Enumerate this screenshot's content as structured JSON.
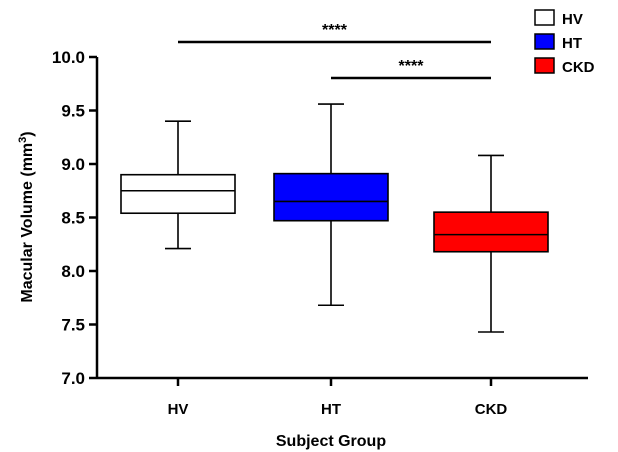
{
  "chart_data": {
    "type": "box",
    "title": "",
    "xlabel": "Subject Group",
    "ylabel_main": "Macular Volume (mm",
    "ylabel_sup": "3",
    "ylabel_tail": ")",
    "ylim": [
      7.0,
      10.0
    ],
    "yticks": [
      7.0,
      7.5,
      8.0,
      8.5,
      9.0,
      9.5,
      10.0
    ],
    "ytick_labels": [
      "7.0",
      "7.5",
      "8.0",
      "8.5",
      "9.0",
      "9.5",
      "10.0"
    ],
    "categories": [
      "HV",
      "HT",
      "CKD"
    ],
    "legend_position": "top-right",
    "series": [
      {
        "name": "HV",
        "color": "#ffffff",
        "min": 8.21,
        "q1": 8.54,
        "median": 8.75,
        "q3": 8.9,
        "max": 9.4
      },
      {
        "name": "HT",
        "color": "#0000ff",
        "min": 7.68,
        "q1": 8.47,
        "median": 8.65,
        "q3": 8.91,
        "max": 9.56
      },
      {
        "name": "CKD",
        "color": "#ff0000",
        "min": 7.43,
        "q1": 8.18,
        "median": 8.34,
        "q3": 8.55,
        "max": 9.08
      }
    ],
    "significance": [
      {
        "from": "HV",
        "to": "CKD",
        "label": "****"
      },
      {
        "from": "HT",
        "to": "CKD",
        "label": "****"
      }
    ]
  }
}
